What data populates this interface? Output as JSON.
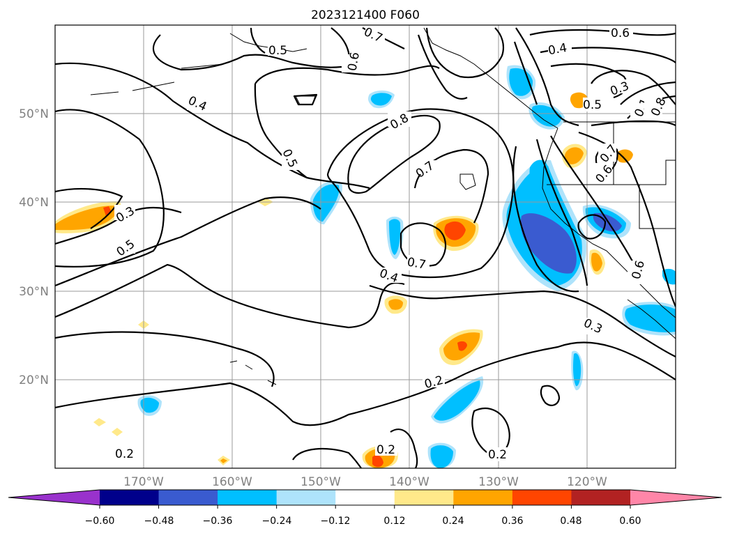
{
  "title": "2023121400 F060",
  "map": {
    "lon_ticks": [
      "170°W",
      "160°W",
      "150°W",
      "140°W",
      "130°W",
      "120°W"
    ],
    "lat_ticks": [
      "50°N",
      "40°N",
      "30°N",
      "20°N"
    ]
  },
  "contour_labels": [
    "0.7",
    "0.6",
    "0.5",
    "0.4",
    "0.8",
    "0.5",
    "0.7",
    "0.3",
    "0.5",
    "0.7",
    "0.4",
    "0.6",
    "0.4",
    "0.3",
    "0.5",
    "0.1",
    "0.8",
    "0.7",
    "0.6",
    "0.3",
    "0.6",
    "0.2",
    "0.2",
    "0.2",
    "0.2"
  ],
  "colorbar": {
    "ticks": [
      "−0.60",
      "−0.48",
      "−0.36",
      "−0.24",
      "−0.12",
      "0.12",
      "0.24",
      "0.36",
      "0.48",
      "0.60"
    ],
    "colors": {
      "below_min": "#9932cc",
      "bins": [
        "#00008b",
        "#3a5bd0",
        "#00bfff",
        "#aee3fb",
        "#ffffff",
        "#ffe98a",
        "#ffa500",
        "#ff4500",
        "#b22222"
      ],
      "above_max": "#ff86a8"
    }
  }
}
